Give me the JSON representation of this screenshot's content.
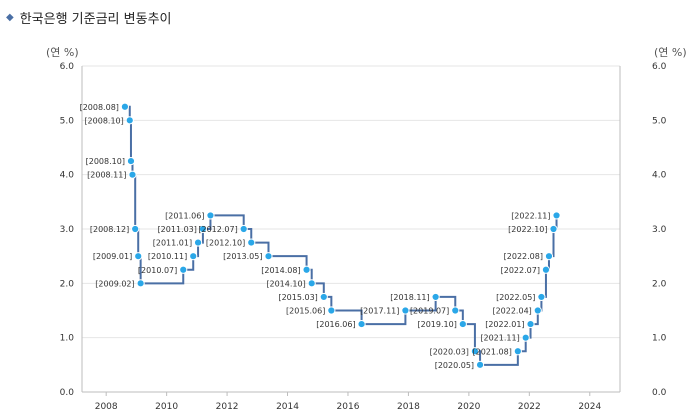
{
  "title": "한국은행 기준금리 변동추이",
  "unit_left": "(연 %)",
  "unit_right": "(연 %)",
  "colors": {
    "line": "#4a6fa5",
    "point": "#2aa7e8",
    "grid": "#e6e6e6",
    "axis": "#bdbdbd"
  },
  "chart_data": {
    "type": "line",
    "step": true,
    "title": "한국은행 기준금리 변동추이",
    "ylim": [
      0,
      6
    ],
    "xlim": [
      2007.2,
      2025.0
    ],
    "y_ticks": [
      "0.0",
      "1.0",
      "2.0",
      "3.0",
      "4.0",
      "5.0",
      "6.0"
    ],
    "x_ticks": [
      "2008",
      "2010",
      "2012",
      "2014",
      "2016",
      "2018",
      "2020",
      "2022",
      "2024"
    ],
    "grid": true,
    "points": [
      {
        "label": "[2008.08]",
        "x": 2008.62,
        "y": 5.25
      },
      {
        "label": "[2008.10]",
        "x": 2008.78,
        "y": 5.0
      },
      {
        "label": "[2008.10]",
        "x": 2008.82,
        "y": 4.25
      },
      {
        "label": "[2008.11]",
        "x": 2008.87,
        "y": 4.0
      },
      {
        "label": "[2008.12]",
        "x": 2008.96,
        "y": 3.0
      },
      {
        "label": "[2009.01]",
        "x": 2009.06,
        "y": 2.5
      },
      {
        "label": "[2009.02]",
        "x": 2009.14,
        "y": 2.0
      },
      {
        "label": "[2010.07]",
        "x": 2010.55,
        "y": 2.25
      },
      {
        "label": "[2010.11]",
        "x": 2010.88,
        "y": 2.5
      },
      {
        "label": "[2011.01]",
        "x": 2011.04,
        "y": 2.75
      },
      {
        "label": "[2011.03]",
        "x": 2011.2,
        "y": 3.0
      },
      {
        "label": "[2011.06]",
        "x": 2011.45,
        "y": 3.25
      },
      {
        "label": "[2012.07]",
        "x": 2012.55,
        "y": 3.0
      },
      {
        "label": "[2012.10]",
        "x": 2012.8,
        "y": 2.75
      },
      {
        "label": "[2013.05]",
        "x": 2013.37,
        "y": 2.5
      },
      {
        "label": "[2014.08]",
        "x": 2014.63,
        "y": 2.25
      },
      {
        "label": "[2014.10]",
        "x": 2014.8,
        "y": 2.0
      },
      {
        "label": "[2015.03]",
        "x": 2015.2,
        "y": 1.75
      },
      {
        "label": "[2015.06]",
        "x": 2015.45,
        "y": 1.5
      },
      {
        "label": "[2016.06]",
        "x": 2016.45,
        "y": 1.25
      },
      {
        "label": "[2017.11]",
        "x": 2017.9,
        "y": 1.5
      },
      {
        "label": "[2018.11]",
        "x": 2018.9,
        "y": 1.75
      },
      {
        "label": "[2019.07]",
        "x": 2019.55,
        "y": 1.5
      },
      {
        "label": "[2019.10]",
        "x": 2019.8,
        "y": 1.25
      },
      {
        "label": "[2020.03]",
        "x": 2020.2,
        "y": 0.75
      },
      {
        "label": "[2020.05]",
        "x": 2020.37,
        "y": 0.5
      },
      {
        "label": "[2021.08]",
        "x": 2021.62,
        "y": 0.75
      },
      {
        "label": "[2021.11]",
        "x": 2021.88,
        "y": 1.0
      },
      {
        "label": "[2022.01]",
        "x": 2022.04,
        "y": 1.25
      },
      {
        "label": "[2022.04]",
        "x": 2022.28,
        "y": 1.5
      },
      {
        "label": "[2022.05]",
        "x": 2022.4,
        "y": 1.75
      },
      {
        "label": "[2022.07]",
        "x": 2022.55,
        "y": 2.25
      },
      {
        "label": "[2022.08]",
        "x": 2022.65,
        "y": 2.5
      },
      {
        "label": "[2022.10]",
        "x": 2022.8,
        "y": 3.0
      },
      {
        "label": "[2022.11]",
        "x": 2022.9,
        "y": 3.25
      }
    ]
  }
}
